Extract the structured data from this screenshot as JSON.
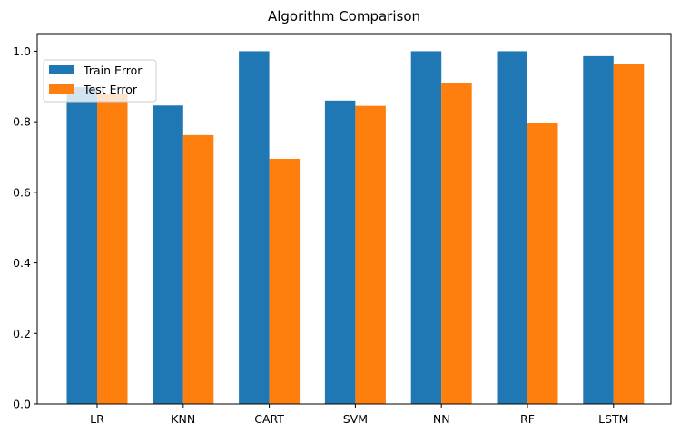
{
  "chart_data": {
    "type": "bar",
    "title": "Algorithm Comparison",
    "xlabel": "",
    "ylabel": "",
    "categories": [
      "LR",
      "KNN",
      "CART",
      "SVM",
      "NN",
      "RF",
      "LSTM"
    ],
    "series": [
      {
        "name": "Train Error",
        "color": "#1f77b4",
        "values": [
          0.898,
          0.846,
          1.0,
          0.86,
          1.0,
          1.0,
          0.986
        ]
      },
      {
        "name": "Test Error",
        "color": "#ff7f0e",
        "values": [
          0.879,
          0.762,
          0.695,
          0.845,
          0.911,
          0.796,
          0.965
        ]
      }
    ],
    "ylim": [
      0,
      1.05
    ],
    "yticks": [
      "0.0",
      "0.2",
      "0.4",
      "0.6",
      "0.8",
      "1.0"
    ],
    "grid": false,
    "legend": "top-left"
  }
}
